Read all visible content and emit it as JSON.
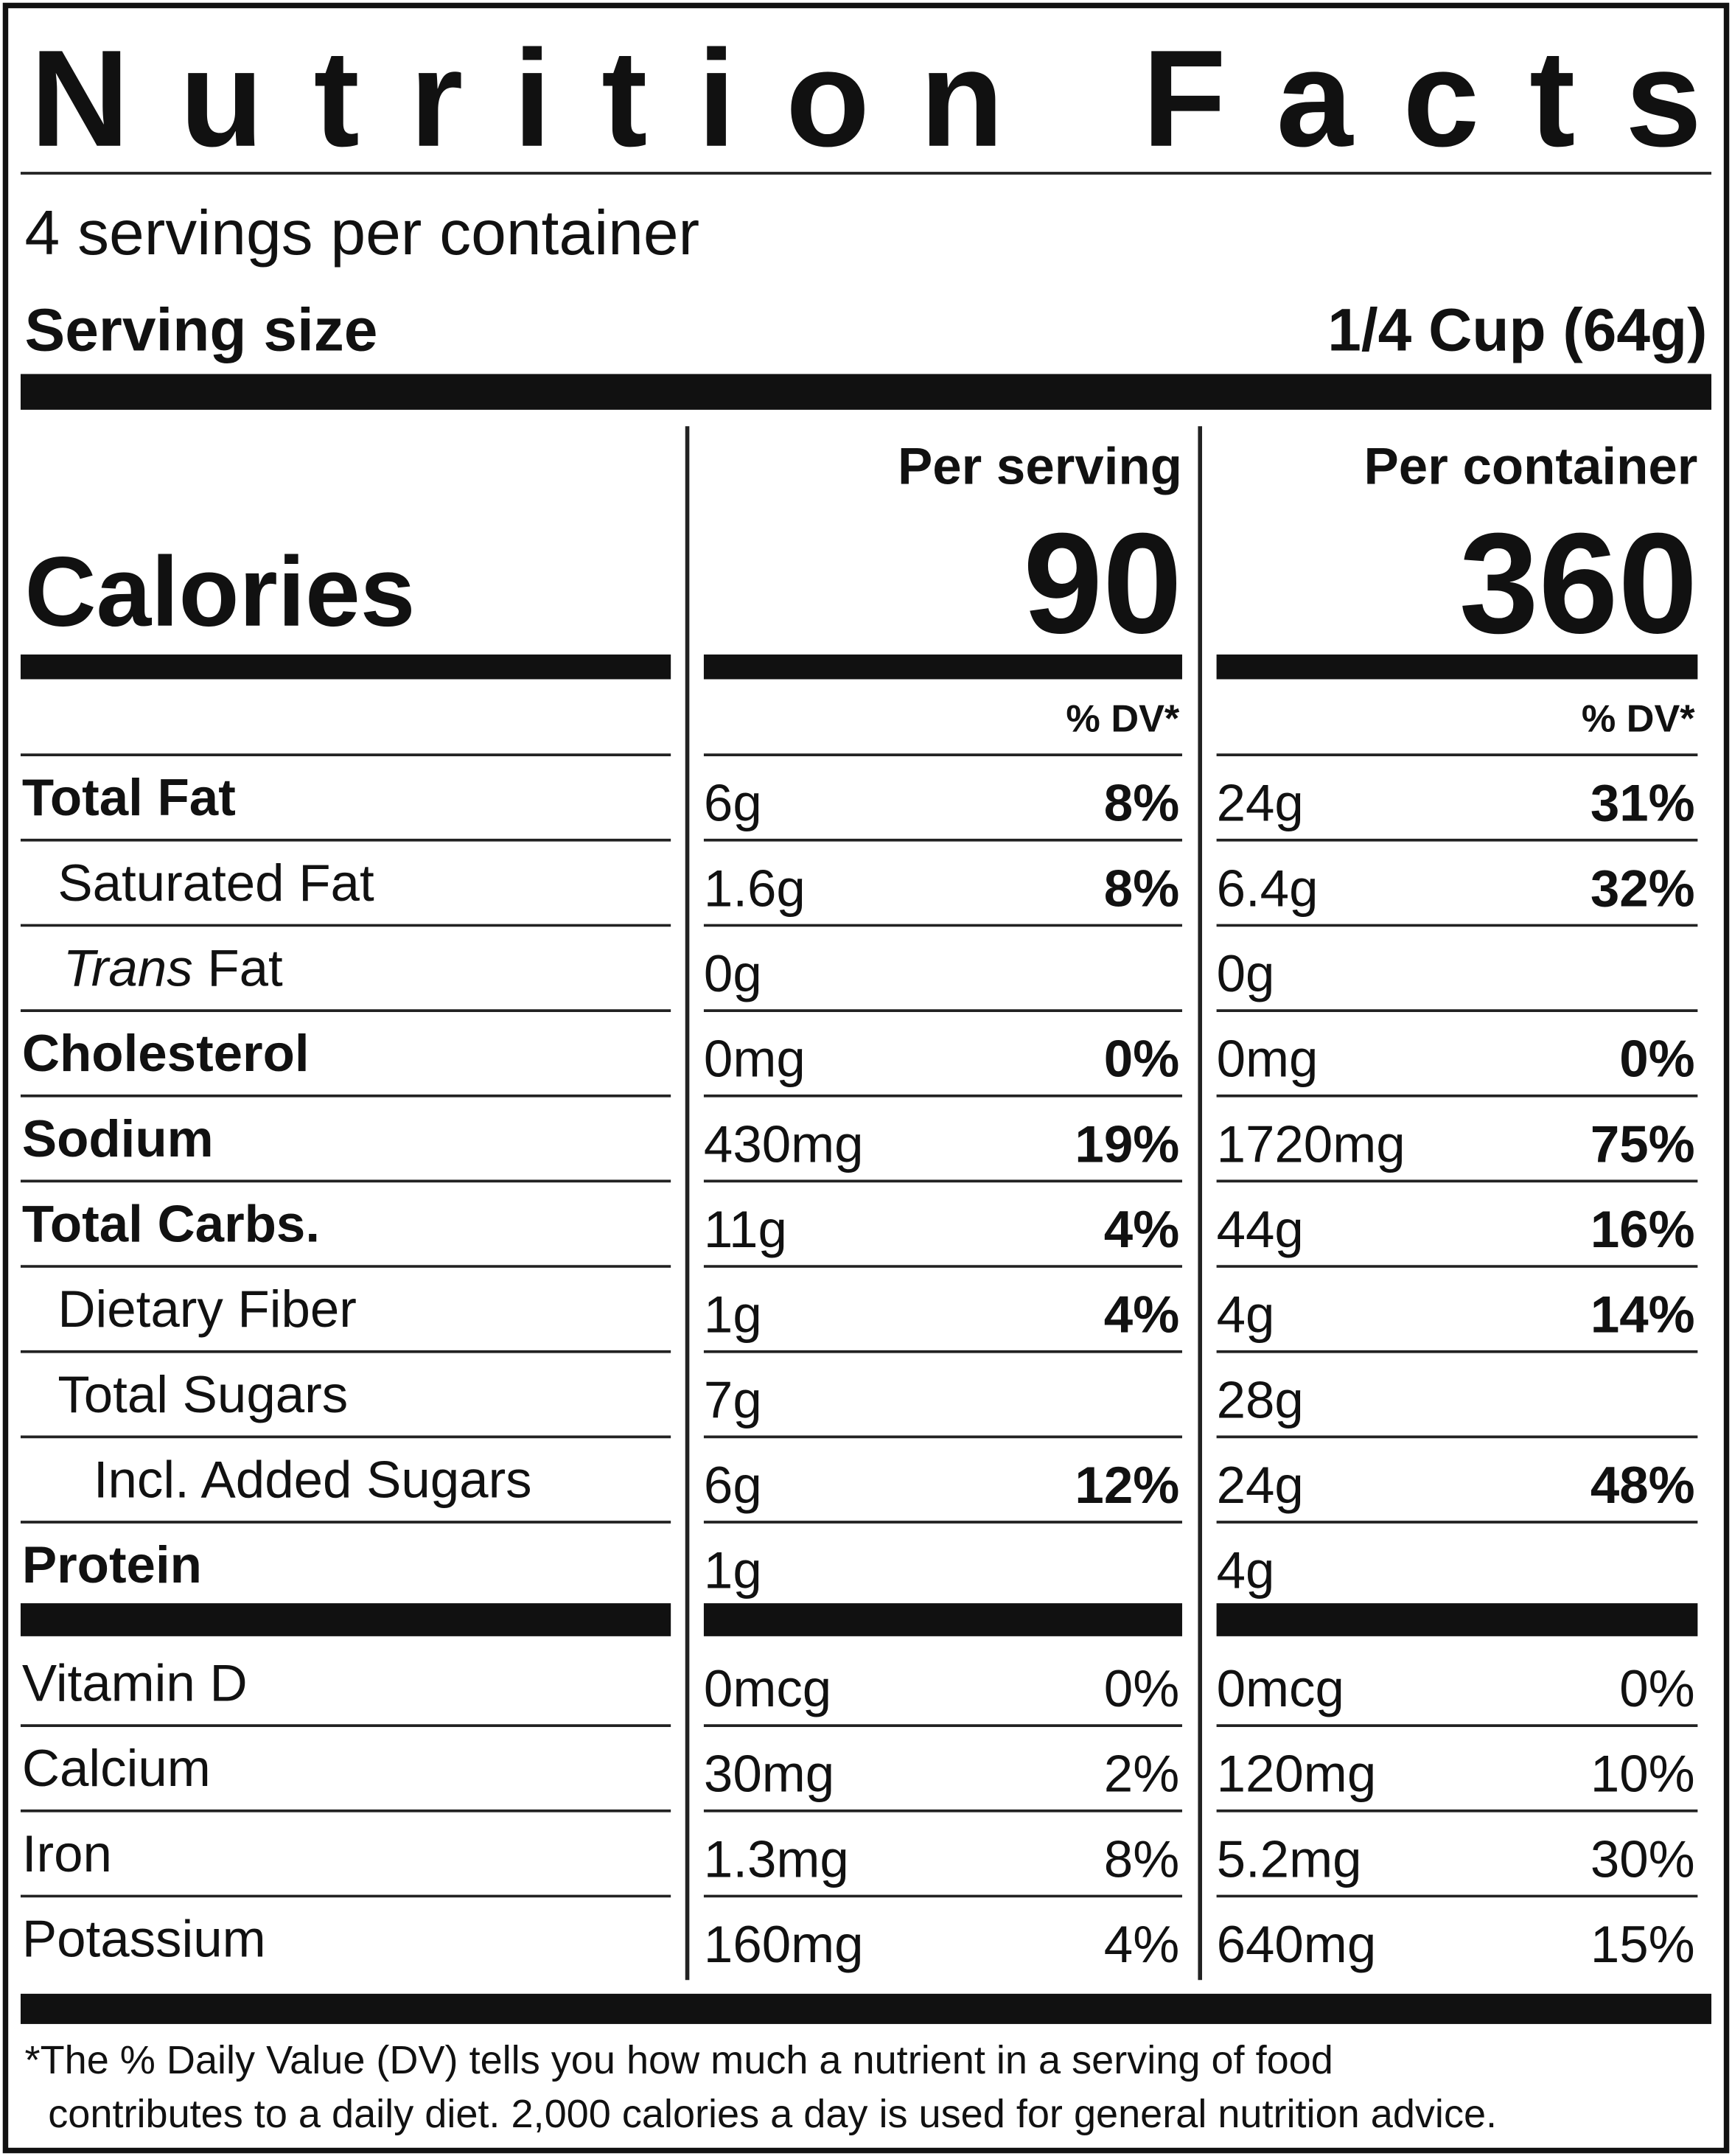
{
  "title": "Nutrition Facts",
  "servings": "4 servings per container",
  "serving_size": {
    "label": "Serving size",
    "value": "1/4 Cup (64g)"
  },
  "columns": [
    "Per serving",
    "Per container"
  ],
  "calories": {
    "label": "Calories",
    "values": [
      "90",
      "360"
    ]
  },
  "dv_header": [
    "% DV*",
    "% DV*"
  ],
  "nutrients": [
    {
      "name": "Total Fat",
      "per_serving": {
        "amount": "6g",
        "dv": "8%"
      },
      "per_container": {
        "amount": "24g",
        "dv": "31%"
      }
    },
    {
      "name": "Saturated Fat",
      "per_serving": {
        "amount": "1.6g",
        "dv": "8%"
      },
      "per_container": {
        "amount": "6.4g",
        "dv": "32%"
      }
    },
    {
      "name": [
        "Trans",
        "Fat"
      ],
      "per_serving": {
        "amount": "0g"
      },
      "per_container": {
        "amount": "0g"
      }
    },
    {
      "name": "Cholesterol",
      "per_serving": {
        "amount": "0mg",
        "dv": "0%"
      },
      "per_container": {
        "amount": "0mg",
        "dv": "0%"
      }
    },
    {
      "name": "Sodium",
      "per_serving": {
        "amount": "430mg",
        "dv": "19%"
      },
      "per_container": {
        "amount": "1720mg",
        "dv": "75%"
      }
    },
    {
      "name": "Total Carbs.",
      "per_serving": {
        "amount": "11g",
        "dv": "4%"
      },
      "per_container": {
        "amount": "44g",
        "dv": "16%"
      }
    },
    {
      "name": "Dietary Fiber",
      "per_serving": {
        "amount": "1g",
        "dv": "4%"
      },
      "per_container": {
        "amount": "4g",
        "dv": "14%"
      }
    },
    {
      "name": "Total Sugars",
      "per_serving": {
        "amount": "7g"
      },
      "per_container": {
        "amount": "28g"
      }
    },
    {
      "name": "Incl. Added Sugars",
      "per_serving": {
        "amount": "6g",
        "dv": "12%"
      },
      "per_container": {
        "amount": "24g",
        "dv": "48%"
      }
    },
    {
      "name": "Protein",
      "per_serving": {
        "amount": "1g"
      },
      "per_container": {
        "amount": "4g"
      }
    }
  ],
  "minerals": [
    {
      "name": "Vitamin D",
      "per_serving": {
        "amount": "0mcg",
        "dv": "0%"
      },
      "per_container": {
        "amount": "0mcg",
        "dv": "0%"
      }
    },
    {
      "name": "Calcium",
      "per_serving": {
        "amount": "30mg",
        "dv": "2%"
      },
      "per_container": {
        "amount": "120mg",
        "dv": "10%"
      }
    },
    {
      "name": "Iron",
      "per_serving": {
        "amount": "1.3mg",
        "dv": "8%"
      },
      "per_container": {
        "amount": "5.2mg",
        "dv": "30%"
      }
    },
    {
      "name": "Potassium",
      "per_serving": {
        "amount": "160mg",
        "dv": "4%"
      },
      "per_container": {
        "amount": "640mg",
        "dv": "15%"
      }
    }
  ],
  "footnote": [
    "*The % Daily Value (DV) tells you how much a nutrient in a serving of food",
    "contributes to a daily diet. 2,000 calories a day is used for general nutrition advice."
  ]
}
